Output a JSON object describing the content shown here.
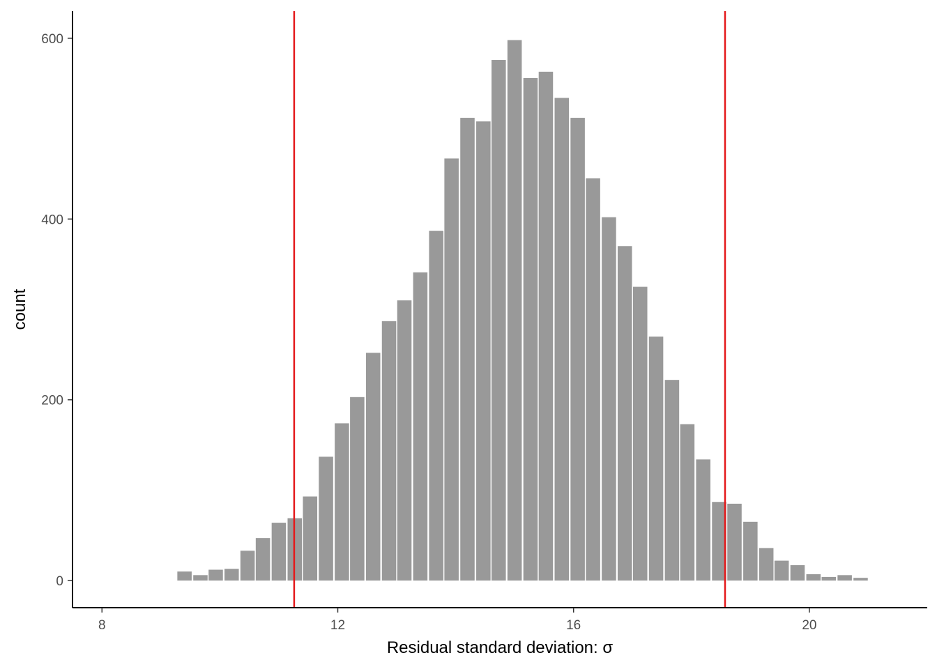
{
  "chart_data": {
    "type": "bar",
    "subtype": "histogram",
    "xlabel": "Residual standard deviation: σ",
    "ylabel": "count",
    "xlim": [
      7.5,
      22.0
    ],
    "ylim": [
      -30,
      630
    ],
    "x_ticks": [
      8,
      12,
      16,
      20
    ],
    "y_ticks": [
      0,
      200,
      400,
      600
    ],
    "grid": false,
    "bin_width": 0.2667,
    "x": [
      9.4,
      9.67,
      9.93,
      10.2,
      10.47,
      10.73,
      11.0,
      11.27,
      11.53,
      11.8,
      12.07,
      12.33,
      12.6,
      12.87,
      13.13,
      13.4,
      13.67,
      13.93,
      14.2,
      14.47,
      14.73,
      15.0,
      15.27,
      15.53,
      15.8,
      16.07,
      16.33,
      16.6,
      16.87,
      17.13,
      17.4,
      17.67,
      17.93,
      18.2,
      18.47,
      18.73,
      19.0,
      19.27,
      19.53,
      19.8,
      20.07,
      20.33,
      20.6,
      20.87
    ],
    "values": [
      10,
      6,
      12,
      13,
      33,
      47,
      64,
      69,
      93,
      137,
      174,
      203,
      252,
      287,
      310,
      341,
      387,
      467,
      512,
      508,
      576,
      598,
      556,
      563,
      534,
      512,
      445,
      402,
      370,
      325,
      270,
      222,
      173,
      134,
      87,
      85,
      65,
      36,
      22,
      17,
      7,
      4,
      6,
      3
    ],
    "bar_color": "#999999",
    "vlines": [
      11.26,
      18.57
    ],
    "vline_color": "#e41a1c"
  }
}
